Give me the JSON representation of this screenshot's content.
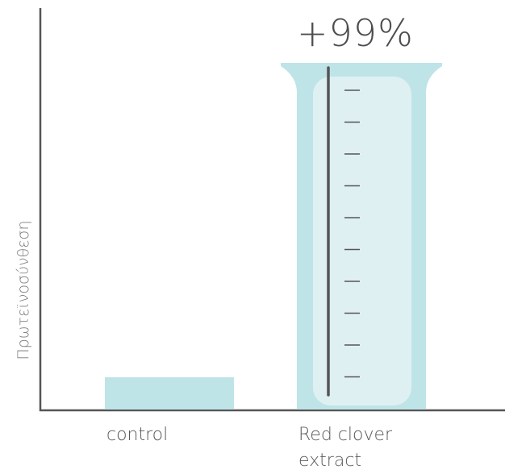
{
  "chart_data": {
    "type": "bar",
    "categories": [
      "control",
      "Red clover\nextract"
    ],
    "values": [
      1,
      1.99
    ],
    "ylabel": "Πρωτεϊνοσύνθεση",
    "xlabel": "",
    "annotations": [
      {
        "category": "Red clover\nextract",
        "text": "+99%"
      }
    ],
    "grid": false,
    "colors": {
      "bar": "#bfe4e8",
      "bar_inner": "#dff0f3",
      "axis": "#555555",
      "scale": "#555555"
    }
  }
}
